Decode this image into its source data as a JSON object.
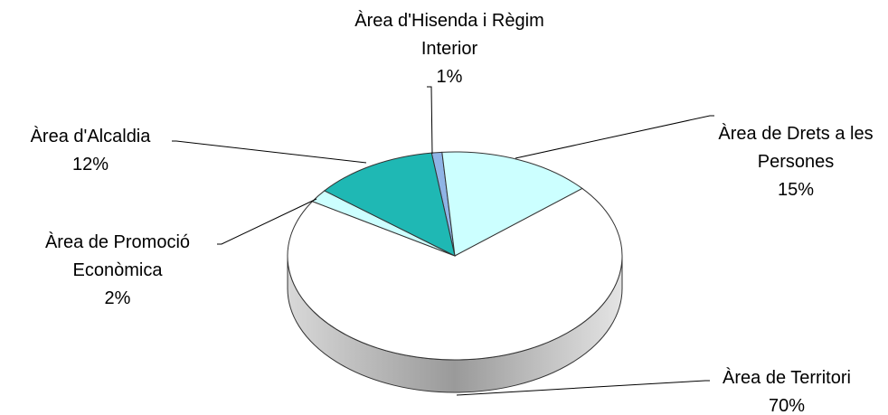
{
  "chart_data": {
    "type": "pie",
    "categories": [
      "Àrea d'Hisenda i Règim Interior",
      "Àrea de Drets a les Persones",
      "Àrea de Territori",
      "Àrea de Promoció Econòmica",
      "Àrea d'Alcaldia"
    ],
    "values": [
      1,
      15,
      70,
      2,
      12
    ],
    "value_labels": [
      "1%",
      "15%",
      "70%",
      "2%",
      "12%"
    ],
    "colors": [
      "#8fb4e6",
      "#ccffff",
      "#ffffff",
      "#ccffff",
      "#1fb8b4"
    ]
  }
}
